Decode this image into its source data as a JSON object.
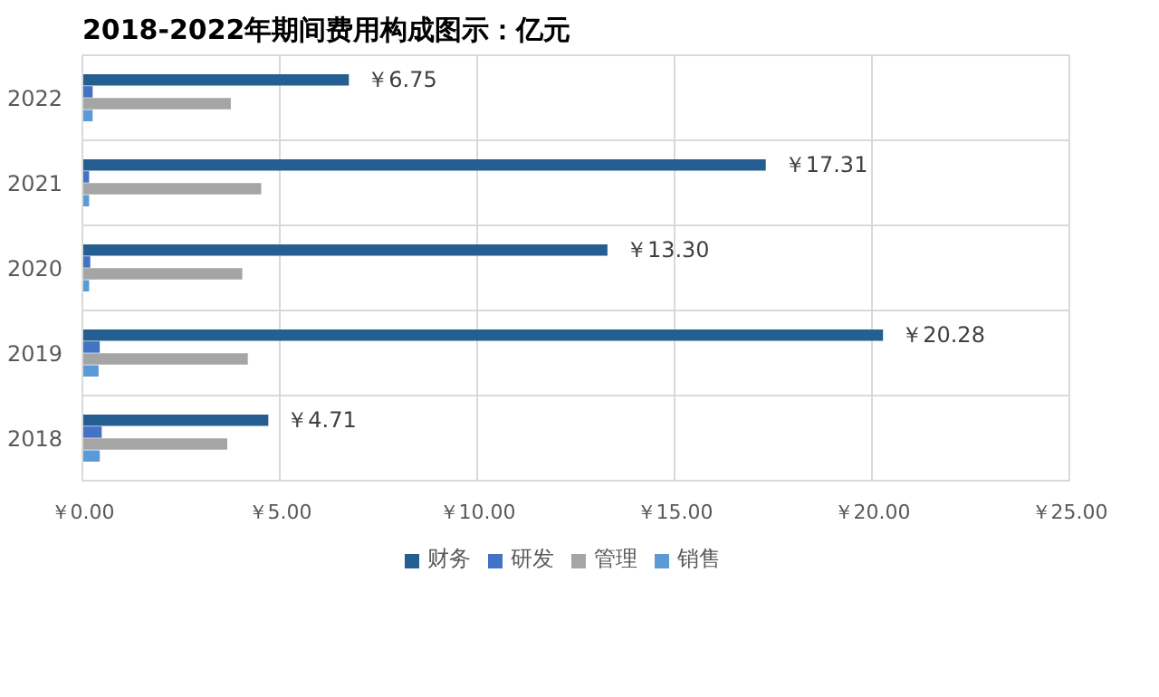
{
  "chart_data": {
    "type": "bar",
    "orientation": "horizontal",
    "title": "2018-2022年期间费用构成图示：亿元",
    "categories": [
      "2022",
      "2021",
      "2020",
      "2019",
      "2018"
    ],
    "series": [
      {
        "name": "财务",
        "color": "#255e91",
        "values": [
          6.75,
          17.31,
          13.3,
          20.28,
          4.71
        ],
        "value_labels": [
          "￥6.75",
          "￥17.31",
          "￥13.30",
          "￥20.28",
          "￥4.71"
        ]
      },
      {
        "name": "研发",
        "color": "#4472c4",
        "values": [
          0.26,
          0.17,
          0.2,
          0.44,
          0.49
        ]
      },
      {
        "name": "管理",
        "color": "#a5a5a5",
        "values": [
          3.76,
          4.53,
          4.05,
          4.19,
          3.67
        ]
      },
      {
        "name": "销售",
        "color": "#5b9bd5",
        "values": [
          0.26,
          0.17,
          0.17,
          0.41,
          0.44
        ]
      }
    ],
    "xlim": [
      0,
      25
    ],
    "xticks": [
      {
        "value": 0,
        "label": "￥0.00"
      },
      {
        "value": 5,
        "label": "￥5.00"
      },
      {
        "value": 10,
        "label": "￥10.00"
      },
      {
        "value": 15,
        "label": "￥15.00"
      },
      {
        "value": 20,
        "label": "￥20.00"
      },
      {
        "value": 25,
        "label": "￥25.00"
      }
    ],
    "grid": true,
    "legend": "bottom"
  }
}
